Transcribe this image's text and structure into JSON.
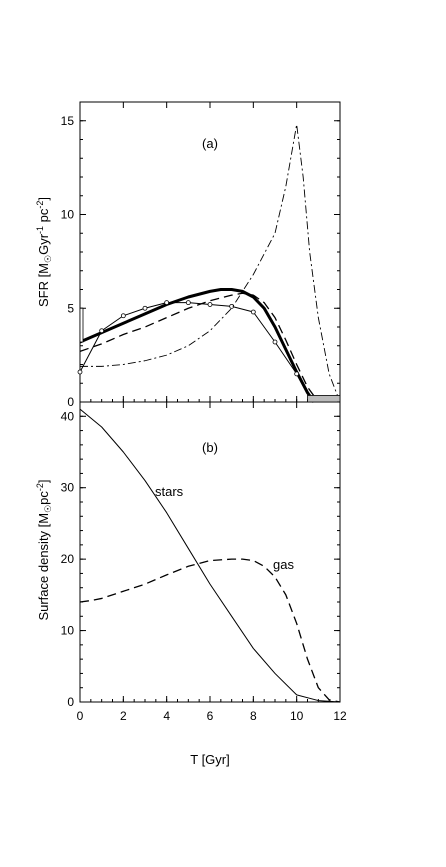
{
  "chart_data": [
    {
      "panel": "(a)",
      "type": "line",
      "ylabel_prefix": "SFR  [M",
      "ylabel_sub": "☉",
      "ylabel_mid": "Gyr",
      "ylabel_sup1": "-1",
      "ylabel_mid2": " pc",
      "ylabel_sup2": "-2",
      "ylabel_suffix": "]",
      "xlim": [
        0,
        12
      ],
      "ylim": [
        0,
        16
      ],
      "yticks": [
        "0",
        "5",
        "10",
        "15"
      ],
      "series": [
        {
          "style": "thick-solid",
          "x": [
            0,
            1,
            2,
            3,
            4,
            5,
            6,
            6.5,
            7,
            7.5,
            8,
            8.5,
            9,
            9.5,
            10,
            10.5,
            10.8
          ],
          "y": [
            3.2,
            3.7,
            4.2,
            4.7,
            5.2,
            5.6,
            5.9,
            6.0,
            6.0,
            5.9,
            5.6,
            5.0,
            4.0,
            2.8,
            1.6,
            0.5,
            0
          ]
        },
        {
          "style": "dashed",
          "x": [
            0,
            1,
            2,
            3,
            4,
            5,
            6,
            7,
            7.5,
            8,
            8.5,
            9,
            9.5,
            10,
            10.5,
            11
          ],
          "y": [
            2.7,
            3.1,
            3.6,
            4.0,
            4.5,
            5.0,
            5.4,
            5.7,
            5.8,
            5.7,
            5.3,
            4.5,
            3.3,
            2.0,
            0.8,
            0
          ]
        },
        {
          "style": "solid-open-circles",
          "x": [
            0,
            1,
            2,
            3,
            4,
            5,
            6,
            7,
            8,
            9,
            10
          ],
          "y": [
            1.6,
            3.8,
            4.6,
            5.0,
            5.3,
            5.3,
            5.2,
            5.1,
            4.8,
            3.2,
            1.5
          ]
        },
        {
          "style": "dash-dot",
          "x": [
            0,
            1,
            2,
            3,
            4,
            5,
            6,
            7,
            8,
            9,
            9.5,
            10,
            10.3,
            10.6,
            11,
            11.5,
            12
          ],
          "y": [
            1.9,
            1.9,
            2.0,
            2.2,
            2.5,
            3.0,
            3.8,
            5.0,
            6.8,
            9.0,
            11.5,
            14.8,
            12.0,
            8.0,
            4.5,
            1.5,
            0
          ]
        }
      ]
    },
    {
      "panel": "(b)",
      "type": "line",
      "ylabel_prefix": "Surface density  [M",
      "ylabel_sub": "☉",
      "ylabel_mid": "pc",
      "ylabel_sup": "-2",
      "ylabel_suffix": "]",
      "xlabel": "T  [Gyr]",
      "xlim": [
        0,
        12
      ],
      "ylim": [
        0,
        42
      ],
      "xticks": [
        "0",
        "2",
        "4",
        "6",
        "8",
        "10",
        "12"
      ],
      "yticks": [
        "0",
        "10",
        "20",
        "30",
        "40"
      ],
      "annotations": [
        "stars",
        "gas"
      ],
      "series": [
        {
          "name": "stars",
          "style": "solid",
          "x": [
            0,
            1,
            2,
            3,
            4,
            5,
            6,
            7,
            8,
            9,
            10,
            11,
            12
          ],
          "y": [
            41,
            38.5,
            35,
            31,
            26.5,
            21.5,
            16.5,
            12,
            7.5,
            4,
            1,
            0.2,
            0
          ]
        },
        {
          "name": "gas",
          "style": "dashed",
          "x": [
            0,
            0.5,
            1,
            2,
            3,
            4,
            5,
            6,
            7,
            7.5,
            8,
            8.5,
            9,
            9.5,
            10,
            10.5,
            11,
            11.5,
            12
          ],
          "y": [
            14,
            14.2,
            14.5,
            15.5,
            16.5,
            17.8,
            19,
            19.8,
            20,
            20,
            19.8,
            19,
            17.5,
            15,
            11,
            6,
            2,
            0.3,
            0
          ]
        }
      ]
    }
  ]
}
